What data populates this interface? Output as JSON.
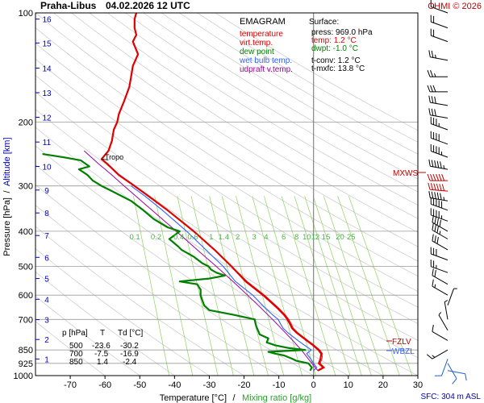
{
  "header": {
    "station": "Praha-Libus",
    "datetime": "04.02.2026 12 UTC",
    "credit": "CHMI © 2026"
  },
  "legend": {
    "title": "EMAGRAM",
    "items": [
      {
        "label": "temperature",
        "color": "#e00000"
      },
      {
        "label": "virt.temp.",
        "color": "#e00000"
      },
      {
        "label": "dew point",
        "color": "#008000"
      },
      {
        "label": "wet bulb temp.",
        "color": "#3060ff"
      },
      {
        "label": "udpraft v.temp.",
        "color": "#a000a0"
      }
    ]
  },
  "surface": {
    "title": "Surface:",
    "press": "press: 969.0 hPa",
    "temp": "temp: 1.2 °C",
    "dwpt": "dwpt: -1.0 °C",
    "tconv": "t-conv: 1.2 °C",
    "tmxfc": "t-mxfc: 13.8 °C"
  },
  "table": {
    "headers": [
      "p [hPa]",
      "T",
      "Td [°C]"
    ],
    "rows": [
      [
        "500",
        "-23.6",
        "-30.2"
      ],
      [
        "700",
        "-7.5",
        "-16.9"
      ],
      [
        "850",
        "1.4",
        "-2.4"
      ]
    ]
  },
  "labels": {
    "tropo": "Tropo",
    "mxws": "MXWS",
    "fzlv": "FZLV",
    "wbzl": "WBZL",
    "sfc": "SFC: 304 m ASL"
  },
  "axes": {
    "xlabel_temp": "Temperature [°C]",
    "xlabel_sep": "/",
    "xlabel_mix": "Mixing ratio [g/kg]",
    "ylabel_pres": "Pressure [hPa]",
    "ylabel_sep": "/",
    "ylabel_alt": "Altitude [km]"
  },
  "colors": {
    "temperature": "#e00000",
    "dewpoint": "#008000",
    "wetbulb": "#3060ff",
    "parcel": "#a000a0",
    "mixing": "#90d060",
    "altitude": "#0000c0",
    "isotherm": "#b0b0b0"
  },
  "chart_data": {
    "type": "line",
    "xlim": [
      -80,
      30
    ],
    "ylim_hpa": [
      1000,
      100
    ],
    "y_scale": "log",
    "temp_ticks": [
      -70,
      -60,
      -50,
      -40,
      -30,
      -20,
      -10,
      0,
      10,
      20,
      30
    ],
    "pressure_ticks": [
      100,
      200,
      300,
      400,
      500,
      600,
      700,
      850,
      925,
      1000
    ],
    "altitude_ticks": [
      {
        "km": "1",
        "p": 900
      },
      {
        "km": "2",
        "p": 795
      },
      {
        "km": "3",
        "p": 701
      },
      {
        "km": "4",
        "p": 616
      },
      {
        "km": "5",
        "p": 540
      },
      {
        "km": "6",
        "p": 472
      },
      {
        "km": "7",
        "p": 411
      },
      {
        "km": "8",
        "p": 356
      },
      {
        "km": "9",
        "p": 308
      },
      {
        "km": "10",
        "p": 265
      },
      {
        "km": "11",
        "p": 227
      },
      {
        "km": "12",
        "p": 194
      },
      {
        "km": "13",
        "p": 166
      },
      {
        "km": "14",
        "p": 142
      },
      {
        "km": "15",
        "p": 121
      },
      {
        "km": "16",
        "p": 104
      }
    ],
    "mixing_ratio_lines": [
      "0.1",
      "0.2",
      "0.4",
      "0.6",
      "1",
      "1.4",
      "2",
      "3",
      "4",
      "6",
      "8",
      "10",
      "12",
      "15",
      "20",
      "25"
    ],
    "series": [
      {
        "name": "temperature",
        "points": [
          [
            969,
            1.2
          ],
          [
            950,
            2.8
          ],
          [
            925,
            1.5
          ],
          [
            900,
            2.0
          ],
          [
            870,
            2.2
          ],
          [
            850,
            1.4
          ],
          [
            820,
            -0.5
          ],
          [
            800,
            -2.0
          ],
          [
            780,
            -3.5
          ],
          [
            760,
            -5.0
          ],
          [
            740,
            -6.2
          ],
          [
            720,
            -6.8
          ],
          [
            700,
            -7.5
          ],
          [
            680,
            -8.5
          ],
          [
            650,
            -10.5
          ],
          [
            600,
            -14.5
          ],
          [
            550,
            -19.5
          ],
          [
            500,
            -23.6
          ],
          [
            450,
            -28.5
          ],
          [
            400,
            -34.5
          ],
          [
            350,
            -42.0
          ],
          [
            320,
            -47.5
          ],
          [
            300,
            -51.5
          ],
          [
            280,
            -56.0
          ],
          [
            260,
            -59.5
          ],
          [
            253,
            -61.0
          ],
          [
            240,
            -59.0
          ],
          [
            225,
            -58.0
          ],
          [
            210,
            -57.5
          ],
          [
            200,
            -56.5
          ],
          [
            190,
            -56.0
          ],
          [
            175,
            -54.5
          ],
          [
            160,
            -53.0
          ],
          [
            150,
            -52.5
          ],
          [
            140,
            -52.0
          ],
          [
            130,
            -50.5
          ],
          [
            120,
            -52.0
          ],
          [
            115,
            -51.0
          ],
          [
            110,
            -51.5
          ],
          [
            104,
            -51.5
          ],
          [
            100,
            -51.0
          ]
        ]
      },
      {
        "name": "dew point",
        "points": [
          [
            969,
            -1.0
          ],
          [
            950,
            -0.5
          ],
          [
            925,
            -1.5
          ],
          [
            910,
            -5.0
          ],
          [
            900,
            -6.0
          ],
          [
            880,
            -8.5
          ],
          [
            870,
            -11.0
          ],
          [
            860,
            -13.0
          ],
          [
            850,
            -2.4
          ],
          [
            840,
            -7.0
          ],
          [
            825,
            -11.0
          ],
          [
            810,
            -13.5
          ],
          [
            790,
            -13.0
          ],
          [
            770,
            -15.5
          ],
          [
            750,
            -16.0
          ],
          [
            730,
            -16.5
          ],
          [
            710,
            -16.8
          ],
          [
            700,
            -16.9
          ],
          [
            680,
            -23.0
          ],
          [
            660,
            -30.0
          ],
          [
            640,
            -31.5
          ],
          [
            620,
            -32.0
          ],
          [
            600,
            -32.5
          ],
          [
            580,
            -32.5
          ],
          [
            560,
            -33.5
          ],
          [
            550,
            -38.5
          ],
          [
            540,
            -30.0
          ],
          [
            530,
            -25.5
          ],
          [
            520,
            -28.0
          ],
          [
            510,
            -29.5
          ],
          [
            500,
            -30.2
          ],
          [
            490,
            -32.0
          ],
          [
            470,
            -34.5
          ],
          [
            450,
            -38.0
          ],
          [
            440,
            -39.0
          ],
          [
            420,
            -41.5
          ],
          [
            410,
            -40.0
          ],
          [
            400,
            -38.5
          ],
          [
            390,
            -42.0
          ],
          [
            370,
            -46.0
          ],
          [
            350,
            -49.0
          ],
          [
            330,
            -52.5
          ],
          [
            310,
            -58.0
          ],
          [
            300,
            -61.0
          ],
          [
            290,
            -63.5
          ],
          [
            280,
            -65.0
          ],
          [
            270,
            -67.5
          ],
          [
            265,
            -64.5
          ],
          [
            255,
            -67.0
          ],
          [
            250,
            -72.0
          ],
          [
            245,
            -78.0
          ]
        ]
      },
      {
        "name": "wet bulb temp.",
        "points": [
          [
            969,
            0.0
          ],
          [
            950,
            0.9
          ],
          [
            925,
            0.0
          ],
          [
            900,
            -0.8
          ],
          [
            870,
            -2.0
          ],
          [
            850,
            -0.6
          ],
          [
            820,
            -3.0
          ],
          [
            800,
            -4.5
          ],
          [
            780,
            -6.0
          ],
          [
            760,
            -7.5
          ],
          [
            740,
            -8.8
          ],
          [
            720,
            -9.5
          ],
          [
            700,
            -10.2
          ],
          [
            680,
            -11.8
          ],
          [
            650,
            -14.0
          ],
          [
            600,
            -17.5
          ],
          [
            550,
            -22.5
          ],
          [
            500,
            -26.0
          ],
          [
            450,
            -31.0
          ],
          [
            400,
            -36.5
          ],
          [
            350,
            -43.5
          ],
          [
            320,
            -48.5
          ],
          [
            300,
            -52.5
          ]
        ]
      },
      {
        "name": "udpraft v.temp.",
        "points": [
          [
            969,
            1.2
          ],
          [
            925,
            -0.5
          ],
          [
            900,
            -1.5
          ],
          [
            850,
            -3.5
          ],
          [
            800,
            -6.0
          ],
          [
            750,
            -8.8
          ],
          [
            700,
            -11.8
          ],
          [
            650,
            -15.2
          ],
          [
            600,
            -19.0
          ],
          [
            550,
            -23.2
          ],
          [
            500,
            -28.0
          ],
          [
            450,
            -33.5
          ],
          [
            400,
            -39.5
          ],
          [
            350,
            -46.5
          ],
          [
            300,
            -54.5
          ],
          [
            280,
            -58.0
          ],
          [
            260,
            -62.0
          ],
          [
            240,
            -66.0
          ]
        ]
      }
    ]
  },
  "wind_barbs": [
    {
      "p": 969,
      "dir": 100,
      "kt": 10
    },
    {
      "p": 925,
      "dir": 150,
      "kt": 10
    },
    {
      "p": 900,
      "dir": 200,
      "kt": 10
    },
    {
      "p": 850,
      "dir": 240,
      "kt": 15
    },
    {
      "p": 800,
      "dir": 300,
      "kt": 10
    },
    {
      "p": 750,
      "dir": 330,
      "kt": 5
    },
    {
      "p": 700,
      "dir": 350,
      "kt": 5
    },
    {
      "p": 640,
      "dir": 20,
      "kt": 5
    },
    {
      "p": 600,
      "dir": 300,
      "kt": 15
    },
    {
      "p": 560,
      "dir": 300,
      "kt": 20
    },
    {
      "p": 520,
      "dir": 290,
      "kt": 25
    },
    {
      "p": 480,
      "dir": 290,
      "kt": 30
    },
    {
      "p": 450,
      "dir": 300,
      "kt": 30
    },
    {
      "p": 420,
      "dir": 300,
      "kt": 35
    },
    {
      "p": 400,
      "dir": 300,
      "kt": 40
    },
    {
      "p": 375,
      "dir": 290,
      "kt": 45
    },
    {
      "p": 350,
      "dir": 290,
      "kt": 50
    },
    {
      "p": 330,
      "dir": 280,
      "kt": 55
    },
    {
      "p": 310,
      "dir": 275,
      "kt": 60
    },
    {
      "p": 290,
      "dir": 270,
      "kt": 60
    },
    {
      "p": 270,
      "dir": 280,
      "kt": 55
    },
    {
      "p": 250,
      "dir": 290,
      "kt": 45
    },
    {
      "p": 230,
      "dir": 290,
      "kt": 40
    },
    {
      "p": 210,
      "dir": 290,
      "kt": 35
    },
    {
      "p": 195,
      "dir": 280,
      "kt": 30
    },
    {
      "p": 180,
      "dir": 280,
      "kt": 30
    },
    {
      "p": 165,
      "dir": 270,
      "kt": 30
    },
    {
      "p": 150,
      "dir": 270,
      "kt": 25
    },
    {
      "p": 135,
      "dir": 280,
      "kt": 25
    },
    {
      "p": 120,
      "dir": 290,
      "kt": 20
    },
    {
      "p": 110,
      "dir": 290,
      "kt": 20
    },
    {
      "p": 100,
      "dir": 290,
      "kt": 15
    }
  ]
}
